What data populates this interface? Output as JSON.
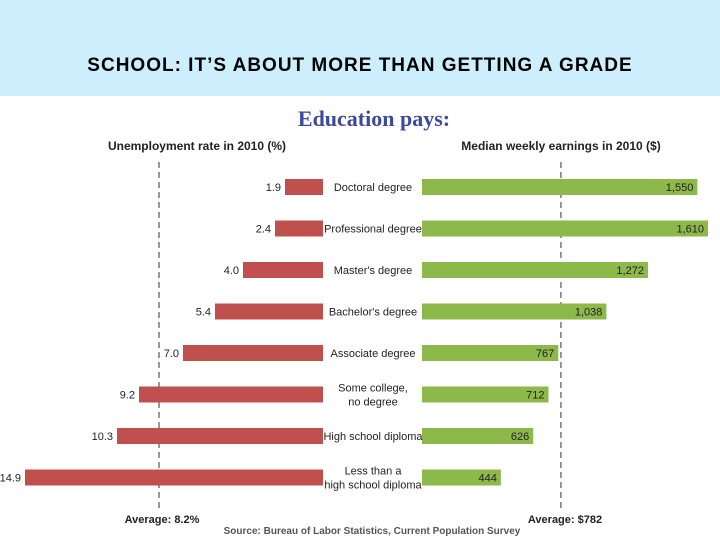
{
  "slide": {
    "title": "SCHOOL: IT’S ABOUT MORE THAN GETTING A GRADE"
  },
  "colors": {
    "banner": "#cdeefc",
    "unemployment_bar": "#c0504d",
    "earnings_bar": "#8db84a",
    "headline": "#3c4a9c"
  },
  "chart_data": {
    "type": "bar",
    "title": "Education pays:",
    "source": "Source: Bureau of Labor Statistics, Current Population Survey",
    "categories": [
      [
        "Doctoral degree"
      ],
      [
        "Professional degree"
      ],
      [
        "Master's degree"
      ],
      [
        "Bachelor's degree"
      ],
      [
        "Associate degree"
      ],
      [
        "Some college,",
        "no degree"
      ],
      [
        "High school diploma"
      ],
      [
        "Less than a",
        "high school diploma"
      ]
    ],
    "series": [
      {
        "name": "Unemployment rate in 2010 (%)",
        "values": [
          1.9,
          2.4,
          4.0,
          5.4,
          7.0,
          9.2,
          10.3,
          14.9
        ],
        "labels": [
          "1.9",
          "2.4",
          "4.0",
          "5.4",
          "7.0",
          "9.2",
          "10.3",
          "14.9"
        ],
        "average": 8.2,
        "average_label": "Average: 8.2%",
        "xlim": [
          0,
          14.9
        ]
      },
      {
        "name": "Median weekly earnings in 2010 ($)",
        "values": [
          1550,
          1610,
          1272,
          1038,
          767,
          712,
          626,
          444
        ],
        "labels": [
          "1,550",
          "1,610",
          "1,272",
          "1,038",
          "767",
          "712",
          "626",
          "444"
        ],
        "average": 782,
        "average_label": "Average: $782",
        "xlim": [
          0,
          1610
        ]
      }
    ],
    "grid": false
  }
}
